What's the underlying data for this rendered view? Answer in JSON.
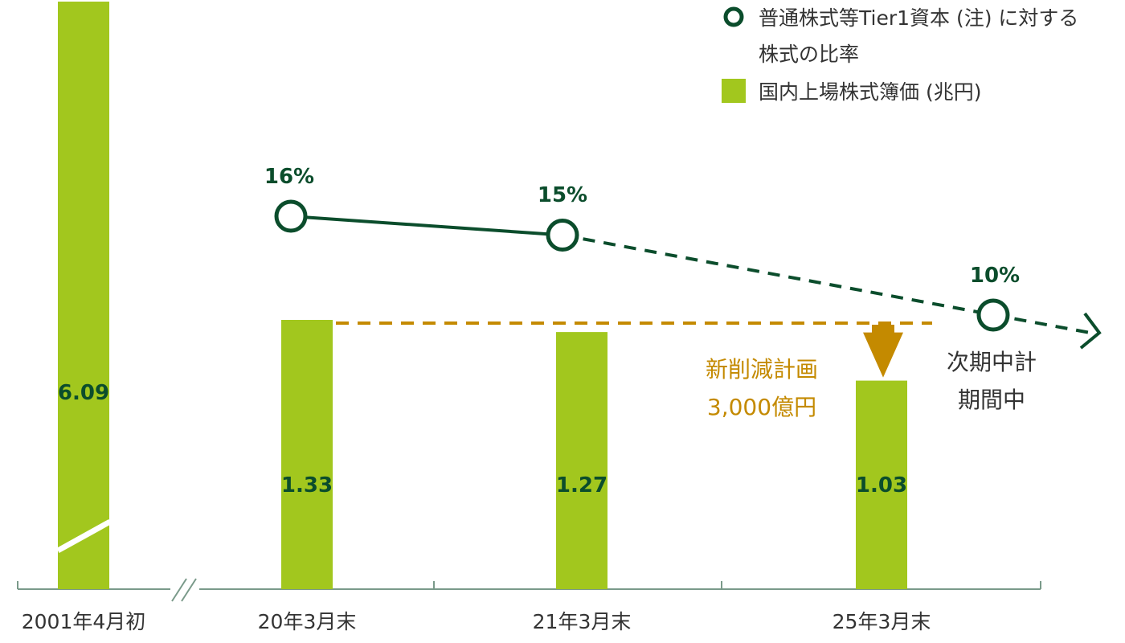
{
  "chart_data": {
    "type": "bar",
    "categories": [
      "2001年4月初",
      "20年3月末",
      "21年3月末",
      "25年3月末"
    ],
    "bar_series": {
      "name": "国内上場株式簿価 (兆円)",
      "values": [
        6.09,
        1.33,
        1.27,
        1.03
      ],
      "value_labels": [
        "6.09",
        "1.33",
        "1.27",
        "1.03"
      ]
    },
    "line_series": {
      "name_line1": "普通株式等Tier1資本 (注) に対する",
      "name_line2": "株式の比率",
      "values": [
        16,
        15,
        10
      ],
      "value_labels": [
        "16%",
        "15%",
        "10%"
      ],
      "categories": [
        "20年3月末",
        "21年3月末",
        "25年3月末"
      ]
    },
    "annotation": {
      "line1": "新削減計画",
      "line2": "3,000億円"
    },
    "note": {
      "line1": "次期中計",
      "line2": "期間中"
    },
    "colors": {
      "bar": "#a2c71e",
      "line": "#0b4d2c",
      "value_label": "#0b4d2c",
      "annotation": "#c48a00",
      "axis": "#7a9a8a"
    }
  }
}
